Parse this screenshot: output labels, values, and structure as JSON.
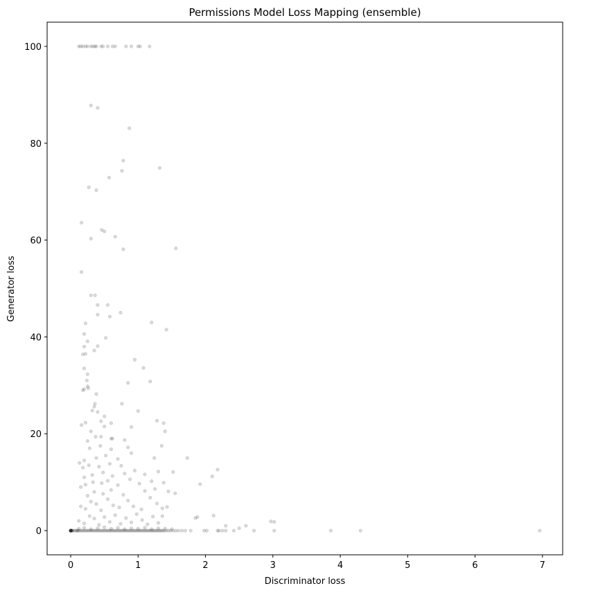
{
  "chart_data": {
    "type": "scatter",
    "title": "Permissions Model Loss Mapping (ensemble)",
    "xlabel": "Discriminator loss",
    "ylabel": "Generator loss",
    "xlim": [
      -0.35,
      7.3
    ],
    "ylim": [
      -5,
      105
    ],
    "xticks": [
      0,
      1,
      2,
      3,
      4,
      5,
      6,
      7
    ],
    "yticks": [
      0,
      20,
      40,
      60,
      80,
      100
    ],
    "grid": false,
    "legend": "none",
    "marker_color": "#000000",
    "marker_opacity": 0.15,
    "series": [
      {
        "points": [
          [
            0.0,
            0
          ],
          [
            0.0,
            0
          ],
          [
            0.0,
            0
          ],
          [
            0.0,
            0
          ],
          [
            0.0,
            0
          ],
          [
            0.0,
            0
          ],
          [
            0.0,
            0
          ],
          [
            0.01,
            0
          ],
          [
            0.01,
            0
          ],
          [
            0.02,
            0
          ],
          [
            0.03,
            0
          ],
          [
            0.05,
            0
          ],
          [
            0.07,
            0
          ],
          [
            0.09,
            0
          ],
          [
            0.1,
            0
          ],
          [
            0.11,
            0
          ],
          [
            0.13,
            0
          ],
          [
            0.15,
            0
          ],
          [
            0.17,
            0
          ],
          [
            0.19,
            0
          ],
          [
            0.21,
            0
          ],
          [
            0.23,
            0
          ],
          [
            0.25,
            0
          ],
          [
            0.27,
            0
          ],
          [
            0.29,
            0
          ],
          [
            0.31,
            0
          ],
          [
            0.33,
            0
          ],
          [
            0.35,
            0
          ],
          [
            0.37,
            0
          ],
          [
            0.39,
            0
          ],
          [
            0.41,
            0
          ],
          [
            0.43,
            0
          ],
          [
            0.45,
            0
          ],
          [
            0.47,
            0
          ],
          [
            0.49,
            0
          ],
          [
            0.51,
            0
          ],
          [
            0.53,
            0
          ],
          [
            0.55,
            0
          ],
          [
            0.57,
            0
          ],
          [
            0.59,
            0
          ],
          [
            0.61,
            0
          ],
          [
            0.63,
            0
          ],
          [
            0.65,
            0
          ],
          [
            0.67,
            0
          ],
          [
            0.69,
            0
          ],
          [
            0.71,
            0
          ],
          [
            0.73,
            0
          ],
          [
            0.75,
            0
          ],
          [
            0.77,
            0
          ],
          [
            0.79,
            0
          ],
          [
            0.81,
            0
          ],
          [
            0.83,
            0
          ],
          [
            0.85,
            0
          ],
          [
            0.87,
            0
          ],
          [
            0.89,
            0
          ],
          [
            0.91,
            0
          ],
          [
            0.93,
            0
          ],
          [
            0.95,
            0
          ],
          [
            0.97,
            0
          ],
          [
            0.99,
            0
          ],
          [
            1.01,
            0
          ],
          [
            1.03,
            0
          ],
          [
            1.05,
            0
          ],
          [
            1.07,
            0
          ],
          [
            1.09,
            0
          ],
          [
            1.11,
            0
          ],
          [
            1.13,
            0
          ],
          [
            1.15,
            0
          ],
          [
            1.17,
            0
          ],
          [
            1.19,
            0
          ],
          [
            1.21,
            0
          ],
          [
            1.23,
            0
          ],
          [
            1.25,
            0
          ],
          [
            1.27,
            0
          ],
          [
            1.29,
            0
          ],
          [
            1.31,
            0
          ],
          [
            1.33,
            0
          ],
          [
            1.35,
            0
          ],
          [
            1.37,
            0
          ],
          [
            1.39,
            0
          ],
          [
            1.42,
            0
          ],
          [
            1.45,
            0
          ],
          [
            1.48,
            0
          ],
          [
            1.52,
            0
          ],
          [
            1.56,
            0
          ],
          [
            1.6,
            0
          ],
          [
            1.65,
            0
          ],
          [
            1.7,
            0
          ],
          [
            1.78,
            0
          ],
          [
            1.98,
            0
          ],
          [
            2.02,
            0
          ],
          [
            2.18,
            0
          ],
          [
            2.2,
            0
          ],
          [
            2.25,
            0
          ],
          [
            2.3,
            0
          ],
          [
            2.42,
            0
          ],
          [
            2.72,
            0
          ],
          [
            3.02,
            0
          ],
          [
            3.86,
            0
          ],
          [
            4.3,
            0
          ],
          [
            6.96,
            0
          ],
          [
            0.12,
            0.4
          ],
          [
            0.2,
            0.6
          ],
          [
            0.3,
            0.3
          ],
          [
            0.4,
            0.5
          ],
          [
            0.5,
            0.7
          ],
          [
            0.6,
            0.4
          ],
          [
            0.7,
            0.6
          ],
          [
            0.8,
            0.3
          ],
          [
            0.9,
            0.5
          ],
          [
            1.0,
            0.4
          ],
          [
            1.1,
            0.6
          ],
          [
            1.2,
            0.3
          ],
          [
            1.3,
            0.5
          ],
          [
            1.4,
            0.4
          ],
          [
            1.5,
            0.3
          ],
          [
            2.5,
            0.5
          ],
          [
            0.12,
            2
          ],
          [
            0.2,
            1.5
          ],
          [
            0.28,
            3
          ],
          [
            0.35,
            2.5
          ],
          [
            0.42,
            1.2
          ],
          [
            0.5,
            2.8
          ],
          [
            0.58,
            1.8
          ],
          [
            0.66,
            3.2
          ],
          [
            0.74,
            1.4
          ],
          [
            0.82,
            2.6
          ],
          [
            0.9,
            1.7
          ],
          [
            0.98,
            3.4
          ],
          [
            1.06,
            2.2
          ],
          [
            1.14,
            1.3
          ],
          [
            1.22,
            2.9
          ],
          [
            1.3,
            1.6
          ],
          [
            1.36,
            3.0
          ],
          [
            1.85,
            2.6
          ],
          [
            1.88,
            2.8
          ],
          [
            2.12,
            3.1
          ],
          [
            2.97,
            1.9
          ],
          [
            3.02,
            1.8
          ],
          [
            2.6,
            1.0
          ],
          [
            2.3,
            1.0
          ],
          [
            0.15,
            5
          ],
          [
            0.22,
            4.5
          ],
          [
            0.3,
            6
          ],
          [
            0.38,
            5.5
          ],
          [
            0.45,
            4.2
          ],
          [
            0.55,
            6.5
          ],
          [
            0.63,
            5.2
          ],
          [
            0.72,
            4.8
          ],
          [
            0.85,
            6.2
          ],
          [
            0.93,
            5.0
          ],
          [
            1.05,
            4.4
          ],
          [
            1.18,
            6.8
          ],
          [
            1.28,
            5.6
          ],
          [
            1.36,
            4.6
          ],
          [
            1.43,
            4.9
          ],
          [
            0.25,
            7.2
          ],
          [
            0.35,
            8.0
          ],
          [
            0.48,
            7.6
          ],
          [
            0.6,
            8.4
          ],
          [
            0.78,
            7.4
          ],
          [
            1.1,
            8.2
          ],
          [
            1.25,
            8.6
          ],
          [
            1.45,
            8.1
          ],
          [
            1.55,
            7.7
          ],
          [
            0.15,
            9
          ],
          [
            0.22,
            9.5
          ],
          [
            0.33,
            10
          ],
          [
            0.46,
            9.8
          ],
          [
            0.55,
            10.3
          ],
          [
            0.7,
            9.4
          ],
          [
            0.88,
            10.6
          ],
          [
            1.02,
            9.7
          ],
          [
            1.2,
            10.2
          ],
          [
            1.38,
            9.9
          ],
          [
            1.92,
            9.6
          ],
          [
            0.2,
            11
          ],
          [
            0.32,
            11.5
          ],
          [
            0.48,
            12
          ],
          [
            0.62,
            11.3
          ],
          [
            0.8,
            11.8
          ],
          [
            0.95,
            12.4
          ],
          [
            1.1,
            11.6
          ],
          [
            1.3,
            12.2
          ],
          [
            1.52,
            12.1
          ],
          [
            2.1,
            11.2
          ],
          [
            2.18,
            12.6
          ],
          [
            0.18,
            13
          ],
          [
            0.27,
            13.5
          ],
          [
            0.42,
            13.2
          ],
          [
            0.58,
            13.8
          ],
          [
            0.75,
            13.4
          ],
          [
            1.24,
            15.0
          ],
          [
            1.73,
            15.0
          ],
          [
            0.13,
            14
          ],
          [
            0.2,
            14.5
          ],
          [
            0.38,
            15
          ],
          [
            0.52,
            15.5
          ],
          [
            0.7,
            14.8
          ],
          [
            0.9,
            16
          ],
          [
            0.28,
            17
          ],
          [
            0.44,
            17.5
          ],
          [
            0.6,
            16.8
          ],
          [
            0.85,
            17.2
          ],
          [
            1.35,
            17.5
          ],
          [
            0.25,
            18.5
          ],
          [
            0.37,
            19.4
          ],
          [
            0.45,
            19.4
          ],
          [
            0.6,
            19.0
          ],
          [
            0.62,
            19.0
          ],
          [
            0.8,
            18.7
          ],
          [
            0.3,
            20.5
          ],
          [
            0.5,
            21.5
          ],
          [
            0.16,
            21.8
          ],
          [
            0.9,
            21.4
          ],
          [
            0.22,
            22.3
          ],
          [
            0.6,
            22.2
          ],
          [
            1.28,
            22.7
          ],
          [
            1.38,
            22.2
          ],
          [
            0.5,
            23.6
          ],
          [
            0.45,
            22.6
          ],
          [
            0.4,
            24.5
          ],
          [
            0.32,
            24.8
          ],
          [
            1.0,
            24.7
          ],
          [
            1.4,
            20.5
          ],
          [
            0.35,
            25.6
          ],
          [
            0.36,
            26.2
          ],
          [
            0.76,
            26.2
          ],
          [
            0.18,
            29.0
          ],
          [
            0.2,
            29.2
          ],
          [
            0.25,
            29.8
          ],
          [
            0.26,
            29.4
          ],
          [
            0.38,
            28.2
          ],
          [
            0.24,
            31.0
          ],
          [
            0.25,
            32.3
          ],
          [
            0.2,
            33.5
          ],
          [
            0.85,
            30.5
          ],
          [
            1.18,
            30.8
          ],
          [
            0.95,
            35.3
          ],
          [
            1.08,
            33.6
          ],
          [
            0.22,
            36.5
          ],
          [
            0.18,
            36.4
          ],
          [
            0.35,
            37.2
          ],
          [
            0.2,
            38.0
          ],
          [
            0.4,
            38.1
          ],
          [
            0.52,
            39.8
          ],
          [
            0.25,
            39.1
          ],
          [
            0.2,
            40.6
          ],
          [
            0.22,
            42.8
          ],
          [
            1.2,
            43.0
          ],
          [
            1.42,
            41.5
          ],
          [
            0.4,
            44.6
          ],
          [
            0.58,
            44.2
          ],
          [
            0.74,
            45.0
          ],
          [
            0.4,
            46.6
          ],
          [
            0.55,
            46.6
          ],
          [
            0.3,
            48.6
          ],
          [
            0.36,
            48.6
          ],
          [
            0.16,
            53.4
          ],
          [
            1.56,
            58.3
          ],
          [
            0.78,
            58.1
          ],
          [
            0.3,
            60.3
          ],
          [
            0.66,
            60.7
          ],
          [
            0.5,
            61.8
          ],
          [
            0.46,
            62.1
          ],
          [
            0.16,
            63.6
          ],
          [
            0.38,
            70.3
          ],
          [
            0.27,
            70.9
          ],
          [
            0.57,
            72.9
          ],
          [
            0.76,
            74.3
          ],
          [
            1.32,
            74.9
          ],
          [
            0.78,
            76.4
          ],
          [
            0.87,
            83.1
          ],
          [
            0.3,
            87.8
          ],
          [
            0.4,
            87.3
          ],
          [
            0.12,
            100
          ],
          [
            0.15,
            100
          ],
          [
            0.18,
            100
          ],
          [
            0.22,
            100
          ],
          [
            0.25,
            100
          ],
          [
            0.3,
            100
          ],
          [
            0.33,
            100
          ],
          [
            0.36,
            100
          ],
          [
            0.38,
            100
          ],
          [
            0.45,
            100
          ],
          [
            0.48,
            100
          ],
          [
            0.55,
            100
          ],
          [
            0.62,
            100
          ],
          [
            0.66,
            100
          ],
          [
            0.82,
            100
          ],
          [
            0.9,
            100
          ],
          [
            1.0,
            100
          ],
          [
            1.03,
            100
          ],
          [
            1.17,
            100
          ]
        ]
      }
    ]
  }
}
